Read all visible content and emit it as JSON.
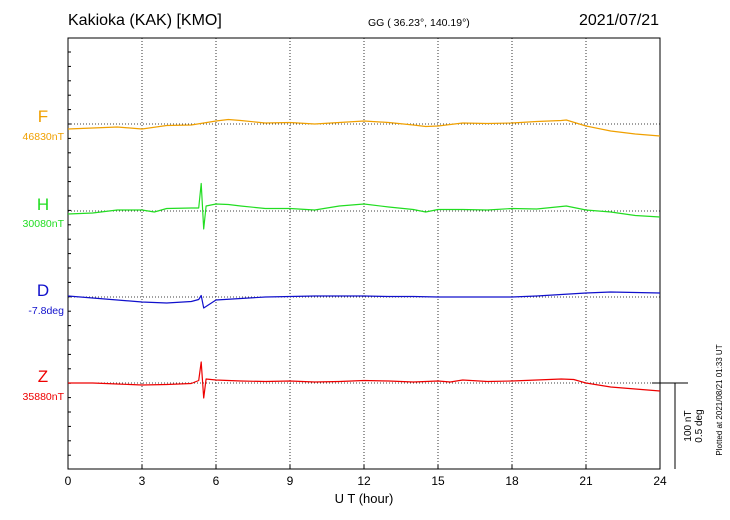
{
  "header": {
    "station": "Kakioka (KAK)  [KMO]",
    "coords": "GG ( 36.23°, 140.19°)",
    "date": "2021/07/21"
  },
  "footer_note": "Plotted at 2021/08/21 01:33 UT",
  "scale": {
    "nt": "100 nT",
    "deg": "0.5 deg"
  },
  "chart_data": {
    "type": "line",
    "title": "Kakioka (KAK)  [KMO]",
    "xlabel": "U T (hour)",
    "ylabel": "",
    "xlim": [
      0,
      24
    ],
    "xticks": [
      0,
      3,
      6,
      9,
      12,
      15,
      18,
      21,
      24
    ],
    "grid": true,
    "series": [
      {
        "name": "F",
        "baseline_label": "46830nT",
        "color": "#f0a000",
        "x": [
          0,
          1,
          2,
          3,
          4,
          5,
          6,
          6.5,
          7,
          8,
          9,
          10,
          11,
          12,
          13,
          14,
          14.5,
          15,
          16,
          17,
          18,
          19,
          20,
          20.2,
          21,
          22,
          23,
          24
        ],
        "y": [
          -10,
          -8,
          -6,
          -10,
          -3,
          -2,
          6,
          9,
          7,
          2,
          3,
          0,
          3,
          6,
          3,
          -2,
          -5,
          -4,
          2,
          1,
          2,
          5,
          7,
          8,
          -4,
          -14,
          -20,
          -24
        ]
      },
      {
        "name": "H",
        "baseline_label": "30080nT",
        "color": "#22dd22",
        "x": [
          0,
          1,
          2,
          3,
          3.5,
          4,
          5,
          5.3,
          5.4,
          5.5,
          5.6,
          6,
          6.5,
          7,
          8,
          9,
          10,
          11,
          12,
          13,
          14,
          14.5,
          15,
          16,
          17,
          18,
          19,
          20,
          20.2,
          21,
          22,
          23,
          24
        ],
        "y": [
          -6,
          -4,
          2,
          2,
          -2,
          5,
          6,
          6,
          55,
          -36,
          10,
          14,
          13,
          10,
          5,
          5,
          2,
          10,
          14,
          8,
          3,
          -2,
          3,
          3,
          2,
          5,
          4,
          9,
          10,
          2,
          -2,
          -9,
          -12
        ]
      },
      {
        "name": "D",
        "baseline_label": "-7.8deg",
        "color": "#1010cc",
        "x": [
          0,
          1,
          2,
          3,
          4,
          5,
          5.3,
          5.4,
          5.5,
          6,
          7,
          8,
          9,
          10,
          11,
          12,
          13,
          14,
          15,
          16,
          17,
          18,
          19,
          20,
          21,
          22,
          23,
          24
        ],
        "y": [
          2,
          -2,
          -6,
          -10,
          -12,
          -9,
          -5,
          3,
          -22,
          -6,
          -3,
          0,
          1,
          2,
          2,
          2,
          1,
          1,
          0,
          0,
          0,
          0,
          2,
          5,
          8,
          10,
          9,
          8
        ]
      },
      {
        "name": "Z",
        "baseline_label": "35880nT",
        "color": "#ee0000",
        "x": [
          0,
          1,
          2,
          3,
          4,
          5,
          5.3,
          5.4,
          5.5,
          5.6,
          6,
          7,
          8,
          9,
          10,
          11,
          12,
          13,
          14,
          15,
          15.5,
          16,
          17,
          18,
          19,
          20,
          20.5,
          21,
          22,
          23,
          24
        ],
        "y": [
          0,
          0,
          -2,
          -4,
          -3,
          -1,
          5,
          42,
          -30,
          8,
          6,
          4,
          3,
          4,
          2,
          3,
          5,
          4,
          2,
          4,
          2,
          6,
          3,
          4,
          6,
          8,
          7,
          0,
          -8,
          -12,
          -16
        ]
      }
    ]
  }
}
